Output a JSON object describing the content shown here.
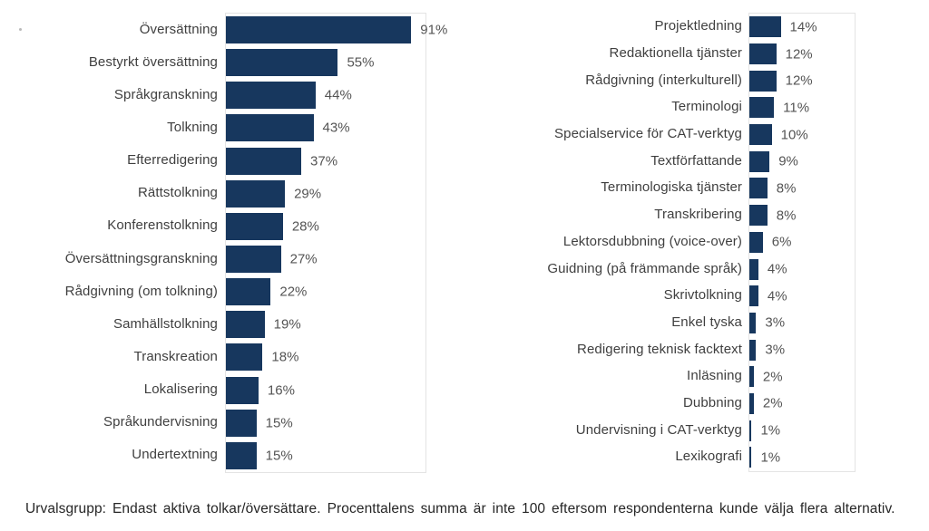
{
  "bar_color": "#17375E",
  "footnote": "Urvalsgrupp: Endast aktiva tolkar/översättare. Procenttalens summa är inte 100 eftersom respondenterna kunde välja flera alternativ.",
  "chart_data": [
    {
      "type": "bar",
      "orientation": "horizontal",
      "title": "",
      "xlabel": "",
      "ylabel": "",
      "legend": false,
      "grid": false,
      "value_suffix": "%",
      "xlim": [
        0,
        98
      ],
      "categories": [
        "Översättning",
        "Bestyrkt översättning",
        "Språkgranskning",
        "Tolkning",
        "Efterredigering",
        "Rättstolkning",
        "Konferenstolkning",
        "Översättningsgranskning",
        "Rådgivning (om tolkning)",
        "Samhällstolkning",
        "Transkreation",
        "Lokalisering",
        "Språkundervisning",
        "Undertextning"
      ],
      "values": [
        91,
        55,
        44,
        43,
        37,
        29,
        28,
        27,
        22,
        19,
        18,
        16,
        15,
        15
      ]
    },
    {
      "type": "bar",
      "orientation": "horizontal",
      "title": "",
      "xlabel": "",
      "ylabel": "",
      "legend": false,
      "grid": false,
      "value_suffix": "%",
      "xlim": [
        0,
        47
      ],
      "categories": [
        "Projektledning",
        "Redaktionella tjänster",
        "Rådgivning (interkulturell)",
        "Terminologi",
        "Specialservice för CAT-verktyg",
        "Textförfattande",
        "Terminologiska tjänster",
        "Transkribering",
        "Lektorsdubbning (voice-over)",
        "Guidning (på främmande språk)",
        "Skrivtolkning",
        "Enkel tyska",
        "Redigering teknisk facktext",
        "Inläsning",
        "Dubbning",
        "Undervisning i CAT-verktyg",
        "Lexikografi"
      ],
      "values": [
        14,
        12,
        12,
        11,
        10,
        9,
        8,
        8,
        6,
        4,
        4,
        3,
        3,
        2,
        2,
        1,
        1
      ]
    }
  ]
}
